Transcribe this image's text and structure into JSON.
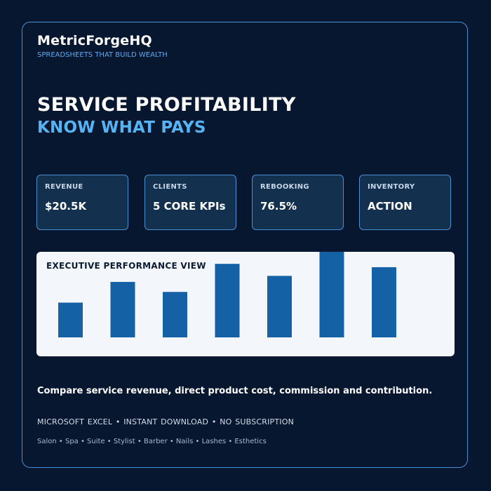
{
  "brand": {
    "name": "MetricForgeHQ",
    "tagline": "SPREADSHEETS THAT BUILD WEALTH"
  },
  "hero": {
    "title": "SERVICE PROFITABILITY",
    "subtitle": "KNOW WHAT PAYS"
  },
  "kpis": [
    {
      "label": "REVENUE",
      "value": "$20.5K"
    },
    {
      "label": "CLIENTS",
      "value": "5 CORE KPIs"
    },
    {
      "label": "REBOOKING",
      "value": "76.5%"
    },
    {
      "label": "INVENTORY",
      "value": "ACTION"
    }
  ],
  "chart": {
    "title": "EXECUTIVE PERFORMANCE VIEW"
  },
  "chart_data": {
    "type": "bar",
    "title": "EXECUTIVE PERFORMANCE VIEW",
    "values": [
      52,
      83,
      68,
      110,
      92,
      128,
      105
    ],
    "ylim": [
      0,
      128
    ],
    "grid": false,
    "bar_color": "#1461a5"
  },
  "description": "Compare service revenue, direct product cost, commission and contribution.",
  "features": "MICROSOFT EXCEL  •  INSTANT DOWNLOAD  •  NO SUBSCRIPTION",
  "categories": "Salon • Spa • Suite • Stylist • Barber • Nails • Lashes • Esthetics",
  "colors": {
    "background": "#071730",
    "border": "#4a8fd3",
    "accent": "#56b3f4",
    "kpi_card": "#13314f",
    "chart_panel": "#f3f7fb",
    "bar": "#1461a5"
  }
}
